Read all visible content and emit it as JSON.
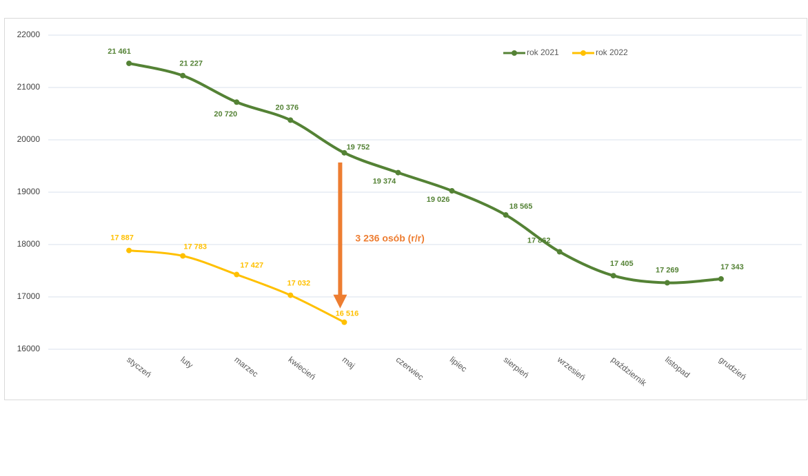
{
  "chart_data": {
    "type": "line",
    "categories": [
      null,
      "styczeń",
      "luty",
      "marzec",
      "kwiecień",
      "maj",
      "czerwiec",
      "lipiec",
      "sierpień",
      "wrzesień",
      "październik",
      "listopad",
      "grudzień",
      null
    ],
    "series": [
      {
        "name": "rok 2021",
        "color": "#548235",
        "values": [
          null,
          21461,
          21227,
          20720,
          20376,
          19752,
          19374,
          19026,
          18565,
          17862,
          17405,
          17269,
          17343,
          null
        ],
        "value_labels": [
          null,
          "21 461",
          "21 227",
          "20 720",
          "20 376",
          "19 752",
          "19 374",
          "19 026",
          "18 565",
          "17 862",
          "17 405",
          "17 269",
          "17 343",
          null
        ]
      },
      {
        "name": "rok 2022",
        "color": "#FFC000",
        "values": [
          null,
          17887,
          17783,
          17427,
          17032,
          16516,
          null,
          null,
          null,
          null,
          null,
          null,
          null,
          null
        ],
        "value_labels": [
          null,
          "17 887",
          "17 783",
          "17 427",
          "17 032",
          "16 516",
          null,
          null,
          null,
          null,
          null,
          null,
          null,
          null
        ]
      }
    ],
    "annotation": {
      "text": "3 236 osób (r/r)",
      "color": "#ED7D31"
    },
    "ylim": [
      16000,
      22000
    ],
    "yticks": [
      16000,
      17000,
      18000,
      19000,
      20000,
      21000,
      22000
    ],
    "grid": true,
    "legend": "top-right",
    "smooth": true
  }
}
